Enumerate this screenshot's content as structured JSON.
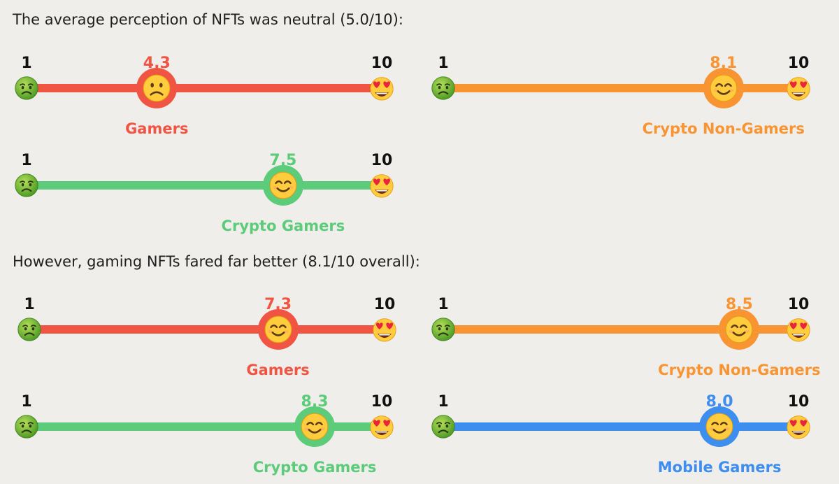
{
  "headings": [
    "The average perception of NFTs was neutral (5.0/10):",
    "However, gaming NFTs fared far better (8.1/10 overall):"
  ],
  "icons": {
    "left_end": "nauseated-face-icon",
    "right_end": "heart-eyes-face-icon",
    "marker_low": "frowning-face-icon",
    "marker_high": "smiling-face-icon"
  },
  "chart_data": [
    {
      "type": "scale",
      "title": "The average perception of NFTs was neutral (5.0/10):",
      "xlim": [
        1,
        10
      ],
      "scale_min_label": "1",
      "scale_max_label": "10",
      "series": [
        {
          "name": "Gamers",
          "value": 4.3,
          "label": "4.3",
          "color": "#f05543",
          "marker": "frowning"
        },
        {
          "name": "Crypto Non-Gamers",
          "value": 8.1,
          "label": "8.1",
          "color": "#f99432",
          "marker": "smiling"
        },
        {
          "name": "Crypto Gamers",
          "value": 7.5,
          "label": "7.5",
          "color": "#5ccb7a",
          "marker": "smiling"
        }
      ]
    },
    {
      "type": "scale",
      "title": "However, gaming NFTs fared far better (8.1/10 overall):",
      "xlim": [
        1,
        10
      ],
      "scale_min_label": "1",
      "scale_max_label": "10",
      "series": [
        {
          "name": "Gamers",
          "value": 7.3,
          "label": "7.3",
          "color": "#f05543",
          "marker": "smiling"
        },
        {
          "name": "Crypto Non-Gamers",
          "value": 8.5,
          "label": "8.5",
          "color": "#f99432",
          "marker": "smiling"
        },
        {
          "name": "Crypto Gamers",
          "value": 8.3,
          "label": "8.3",
          "color": "#5ccb7a",
          "marker": "smiling"
        },
        {
          "name": "Mobile Gamers",
          "value": 8.0,
          "label": "8.0",
          "color": "#3e8ef0",
          "marker": "smiling"
        }
      ]
    }
  ]
}
